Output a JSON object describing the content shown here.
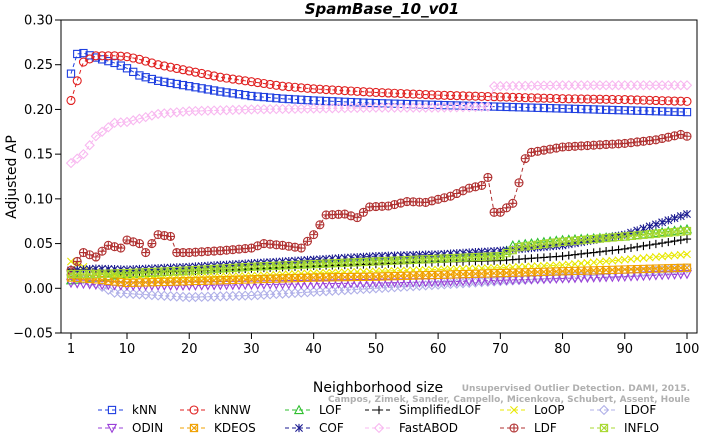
{
  "chart_data": {
    "type": "line",
    "title": "SpamBase_10_v01",
    "xlabel": "Neighborhood size",
    "ylabel": "Adjusted AP",
    "xlim": [
      1,
      100
    ],
    "ylim": [
      -0.05,
      0.3
    ],
    "xticks": [
      1,
      10,
      20,
      30,
      40,
      50,
      60,
      70,
      80,
      90,
      100
    ],
    "yticks": [
      -0.05,
      0.0,
      0.05,
      0.1,
      0.15,
      0.2,
      0.25,
      0.3
    ],
    "ytick_labels": [
      "−0.05",
      "0.00",
      "0.05",
      "0.10",
      "0.15",
      "0.20",
      "0.25",
      "0.30"
    ],
    "grid": false,
    "legend_position": "bottom",
    "watermark": [
      "Unsupervised Outlier Detection. DAMI, 2015.",
      "Campos, Zimek, Sander, Campello, Micenkova, Schubert, Assent, Houle"
    ],
    "series": [
      {
        "name": "kNN",
        "color": "#1f3fe0",
        "marker": "square",
        "points": [
          [
            1,
            0.24
          ],
          [
            2,
            0.262
          ],
          [
            3,
            0.263
          ],
          [
            5,
            0.258
          ],
          [
            8,
            0.252
          ],
          [
            10,
            0.246
          ],
          [
            12,
            0.238
          ],
          [
            15,
            0.232
          ],
          [
            20,
            0.226
          ],
          [
            25,
            0.22
          ],
          [
            30,
            0.215
          ],
          [
            35,
            0.212
          ],
          [
            40,
            0.21
          ],
          [
            50,
            0.207
          ],
          [
            60,
            0.205
          ],
          [
            70,
            0.203
          ],
          [
            80,
            0.201
          ],
          [
            90,
            0.199
          ],
          [
            100,
            0.197
          ]
        ]
      },
      {
        "name": "kNNW",
        "color": "#e01f1f",
        "marker": "circle",
        "points": [
          [
            1,
            0.21
          ],
          [
            2,
            0.232
          ],
          [
            3,
            0.253
          ],
          [
            5,
            0.26
          ],
          [
            8,
            0.26
          ],
          [
            10,
            0.259
          ],
          [
            12,
            0.256
          ],
          [
            15,
            0.25
          ],
          [
            20,
            0.243
          ],
          [
            25,
            0.236
          ],
          [
            30,
            0.231
          ],
          [
            35,
            0.226
          ],
          [
            40,
            0.223
          ],
          [
            50,
            0.219
          ],
          [
            60,
            0.216
          ],
          [
            70,
            0.214
          ],
          [
            80,
            0.212
          ],
          [
            90,
            0.211
          ],
          [
            100,
            0.209
          ]
        ]
      },
      {
        "name": "LOF",
        "color": "#2fbf2f",
        "marker": "triangle",
        "points": [
          [
            1,
            0.009
          ],
          [
            5,
            0.012
          ],
          [
            10,
            0.016
          ],
          [
            20,
            0.02
          ],
          [
            30,
            0.025
          ],
          [
            40,
            0.028
          ],
          [
            50,
            0.031
          ],
          [
            60,
            0.034
          ],
          [
            70,
            0.036
          ],
          [
            72,
            0.048
          ],
          [
            80,
            0.054
          ],
          [
            90,
            0.058
          ],
          [
            100,
            0.066
          ]
        ]
      },
      {
        "name": "SimplifiedLOF",
        "color": "#000000",
        "marker": "plus",
        "points": [
          [
            1,
            0.021
          ],
          [
            5,
            0.02
          ],
          [
            10,
            0.018
          ],
          [
            20,
            0.019
          ],
          [
            30,
            0.022
          ],
          [
            40,
            0.025
          ],
          [
            50,
            0.027
          ],
          [
            60,
            0.029
          ],
          [
            70,
            0.031
          ],
          [
            80,
            0.036
          ],
          [
            90,
            0.044
          ],
          [
            100,
            0.055
          ]
        ]
      },
      {
        "name": "LoOP",
        "color": "#e8e800",
        "marker": "x",
        "points": [
          [
            1,
            0.03
          ],
          [
            5,
            0.018
          ],
          [
            10,
            0.012
          ],
          [
            20,
            0.012
          ],
          [
            30,
            0.014
          ],
          [
            40,
            0.017
          ],
          [
            50,
            0.019
          ],
          [
            60,
            0.021
          ],
          [
            70,
            0.023
          ],
          [
            80,
            0.026
          ],
          [
            90,
            0.032
          ],
          [
            100,
            0.038
          ]
        ]
      },
      {
        "name": "LDOF",
        "color": "#b0b0e8",
        "marker": "diamond",
        "points": [
          [
            1,
            0.015
          ],
          [
            5,
            0.005
          ],
          [
            8,
            -0.005
          ],
          [
            15,
            -0.008
          ],
          [
            20,
            -0.01
          ],
          [
            30,
            -0.008
          ],
          [
            40,
            -0.004
          ],
          [
            50,
            0.0
          ],
          [
            60,
            0.004
          ],
          [
            70,
            0.008
          ],
          [
            80,
            0.012
          ],
          [
            90,
            0.017
          ],
          [
            100,
            0.022
          ]
        ]
      },
      {
        "name": "ODIN",
        "color": "#9a40d8",
        "marker": "triangle-down",
        "points": [
          [
            1,
            0.006
          ],
          [
            5,
            0.004
          ],
          [
            10,
            0.003
          ],
          [
            20,
            0.003
          ],
          [
            30,
            0.004
          ],
          [
            40,
            0.005
          ],
          [
            50,
            0.006
          ],
          [
            60,
            0.007
          ],
          [
            70,
            0.009
          ],
          [
            80,
            0.011
          ],
          [
            90,
            0.013
          ],
          [
            100,
            0.016
          ]
        ]
      },
      {
        "name": "KDEOS",
        "color": "#f0a000",
        "marker": "square-x",
        "points": [
          [
            1,
            0.012
          ],
          [
            5,
            0.01
          ],
          [
            10,
            0.006
          ],
          [
            20,
            0.008
          ],
          [
            30,
            0.01
          ],
          [
            40,
            0.012
          ],
          [
            50,
            0.013
          ],
          [
            60,
            0.015
          ],
          [
            70,
            0.017
          ],
          [
            80,
            0.019
          ],
          [
            90,
            0.021
          ],
          [
            100,
            0.023
          ]
        ]
      },
      {
        "name": "COF",
        "color": "#1a1a90",
        "marker": "asterisk",
        "points": [
          [
            1,
            0.02
          ],
          [
            5,
            0.022
          ],
          [
            10,
            0.021
          ],
          [
            20,
            0.024
          ],
          [
            30,
            0.028
          ],
          [
            40,
            0.032
          ],
          [
            50,
            0.036
          ],
          [
            60,
            0.038
          ],
          [
            70,
            0.042
          ],
          [
            80,
            0.048
          ],
          [
            90,
            0.06
          ],
          [
            100,
            0.083
          ]
        ]
      },
      {
        "name": "FastABOD",
        "color": "#f8b8f0",
        "marker": "diamond",
        "points": [
          [
            1,
            0.14
          ],
          [
            3,
            0.15
          ],
          [
            5,
            0.17
          ],
          [
            8,
            0.185
          ],
          [
            10,
            0.186
          ],
          [
            15,
            0.195
          ],
          [
            20,
            0.198
          ],
          [
            30,
            0.2
          ],
          [
            40,
            0.201
          ],
          [
            50,
            0.202
          ],
          [
            60,
            0.202
          ],
          [
            68,
            0.203
          ],
          [
            69,
            0.226
          ],
          [
            80,
            0.227
          ],
          [
            90,
            0.227
          ],
          [
            100,
            0.227
          ]
        ]
      },
      {
        "name": "LDF",
        "color": "#b03030",
        "marker": "circle-plus",
        "points": [
          [
            1,
            0.02
          ],
          [
            3,
            0.04
          ],
          [
            5,
            0.035
          ],
          [
            7,
            0.048
          ],
          [
            9,
            0.045
          ],
          [
            10,
            0.054
          ],
          [
            12,
            0.05
          ],
          [
            13,
            0.04
          ],
          [
            15,
            0.06
          ],
          [
            17,
            0.058
          ],
          [
            18,
            0.04
          ],
          [
            20,
            0.04
          ],
          [
            25,
            0.042
          ],
          [
            30,
            0.045
          ],
          [
            32,
            0.05
          ],
          [
            35,
            0.048
          ],
          [
            38,
            0.045
          ],
          [
            40,
            0.06
          ],
          [
            42,
            0.082
          ],
          [
            45,
            0.083
          ],
          [
            47,
            0.079
          ],
          [
            49,
            0.091
          ],
          [
            52,
            0.092
          ],
          [
            55,
            0.097
          ],
          [
            58,
            0.096
          ],
          [
            62,
            0.103
          ],
          [
            65,
            0.112
          ],
          [
            67,
            0.115
          ],
          [
            68,
            0.124
          ],
          [
            69,
            0.085
          ],
          [
            70,
            0.085
          ],
          [
            72,
            0.095
          ],
          [
            73,
            0.118
          ],
          [
            74,
            0.145
          ],
          [
            75,
            0.152
          ],
          [
            80,
            0.158
          ],
          [
            85,
            0.16
          ],
          [
            90,
            0.162
          ],
          [
            95,
            0.166
          ],
          [
            99,
            0.172
          ],
          [
            100,
            0.17
          ]
        ]
      },
      {
        "name": "INFLO",
        "color": "#a8d830",
        "marker": "square-x",
        "points": [
          [
            1,
            0.016
          ],
          [
            5,
            0.016
          ],
          [
            10,
            0.017
          ],
          [
            20,
            0.02
          ],
          [
            30,
            0.024
          ],
          [
            40,
            0.027
          ],
          [
            50,
            0.03
          ],
          [
            60,
            0.033
          ],
          [
            70,
            0.036
          ],
          [
            73,
            0.046
          ],
          [
            80,
            0.052
          ],
          [
            90,
            0.058
          ],
          [
            100,
            0.064
          ]
        ]
      }
    ]
  }
}
